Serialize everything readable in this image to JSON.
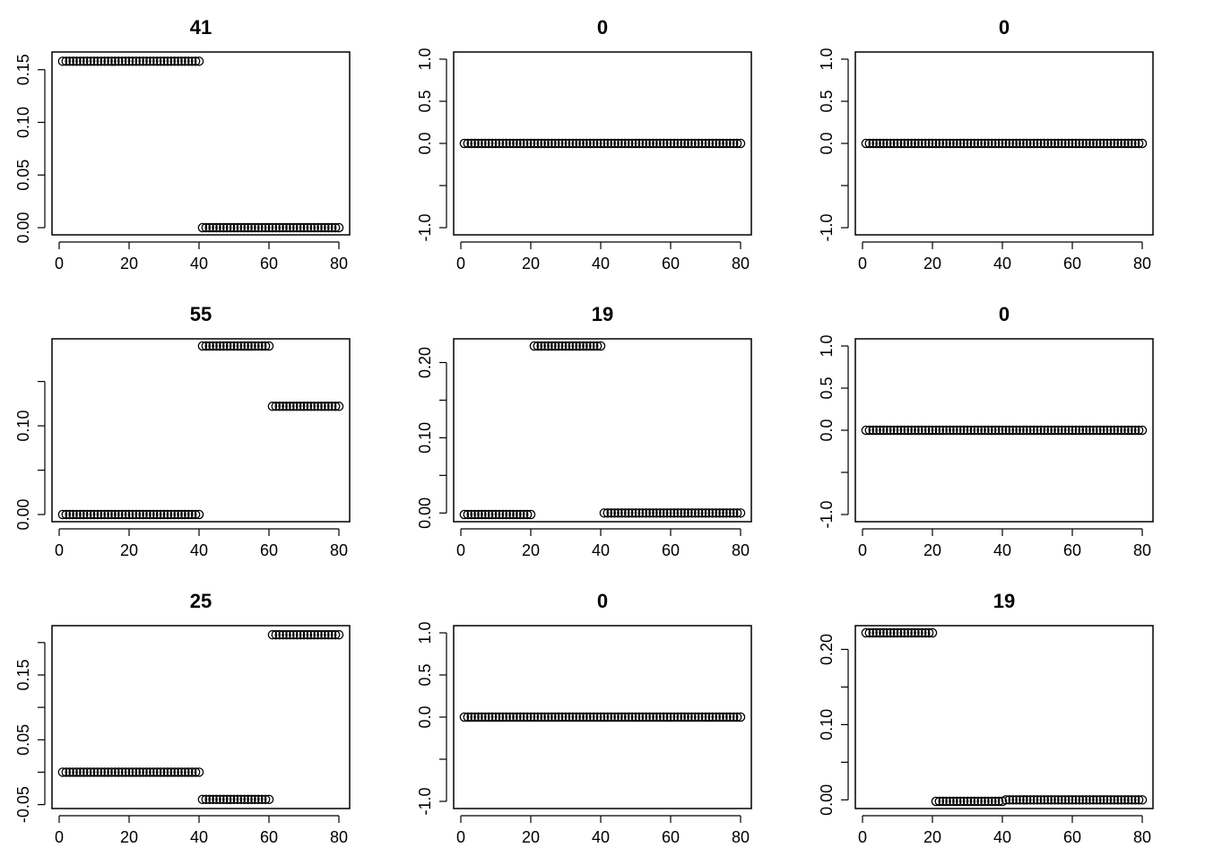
{
  "chart_data": [
    {
      "type": "scatter",
      "title": "41",
      "xlabel": "",
      "ylabel": "",
      "xlim": [
        0,
        80
      ],
      "ylim": [
        0.0,
        0.16
      ],
      "xticks": [
        0,
        20,
        40,
        60,
        80
      ],
      "xtick_labels": [
        "0",
        "20",
        "40",
        "60",
        "80"
      ],
      "yticks": [
        0.0,
        0.05,
        0.1,
        0.15
      ],
      "ytick_labels": [
        "0.00",
        "0.05",
        "0.10",
        "0.15"
      ],
      "segments": [
        {
          "x_from": 1,
          "x_to": 40,
          "y": 0.158
        },
        {
          "x_from": 41,
          "x_to": 80,
          "y": 0.0
        }
      ]
    },
    {
      "type": "scatter",
      "title": "0",
      "xlabel": "",
      "ylabel": "",
      "xlim": [
        0,
        80
      ],
      "ylim": [
        -1.0,
        1.0
      ],
      "xticks": [
        0,
        20,
        40,
        60,
        80
      ],
      "xtick_labels": [
        "0",
        "20",
        "40",
        "60",
        "80"
      ],
      "yticks": [
        -1.0,
        -0.5,
        0.0,
        0.5,
        1.0
      ],
      "ytick_labels": [
        "-1.0",
        "",
        "0.0",
        "0.5",
        "1.0"
      ],
      "segments": [
        {
          "x_from": 1,
          "x_to": 80,
          "y": 0.0
        }
      ]
    },
    {
      "type": "scatter",
      "title": "0",
      "xlabel": "",
      "ylabel": "",
      "xlim": [
        0,
        80
      ],
      "ylim": [
        -1.0,
        1.0
      ],
      "xticks": [
        0,
        20,
        40,
        60,
        80
      ],
      "xtick_labels": [
        "0",
        "20",
        "40",
        "60",
        "80"
      ],
      "yticks": [
        -1.0,
        -0.5,
        0.0,
        0.5,
        1.0
      ],
      "ytick_labels": [
        "-1.0",
        "",
        "0.0",
        "0.5",
        "1.0"
      ],
      "segments": [
        {
          "x_from": 1,
          "x_to": 80,
          "y": 0.0
        }
      ]
    },
    {
      "type": "scatter",
      "title": "55",
      "xlabel": "",
      "ylabel": "",
      "xlim": [
        0,
        80
      ],
      "ylim": [
        0.0,
        0.19
      ],
      "xticks": [
        0,
        20,
        40,
        60,
        80
      ],
      "xtick_labels": [
        "0",
        "20",
        "40",
        "60",
        "80"
      ],
      "yticks": [
        0.0,
        0.05,
        0.1,
        0.15
      ],
      "ytick_labels": [
        "0.00",
        "",
        "0.10",
        ""
      ],
      "segments": [
        {
          "x_from": 1,
          "x_to": 40,
          "y": 0.0
        },
        {
          "x_from": 41,
          "x_to": 60,
          "y": 0.19
        },
        {
          "x_from": 61,
          "x_to": 80,
          "y": 0.122
        }
      ]
    },
    {
      "type": "scatter",
      "title": "19",
      "xlabel": "",
      "ylabel": "",
      "xlim": [
        0,
        80
      ],
      "ylim": [
        -0.002,
        0.222
      ],
      "xticks": [
        0,
        20,
        40,
        60,
        80
      ],
      "xtick_labels": [
        "0",
        "20",
        "40",
        "60",
        "80"
      ],
      "yticks": [
        0.0,
        0.05,
        0.1,
        0.15,
        0.2
      ],
      "ytick_labels": [
        "0.00",
        "",
        "0.10",
        "",
        "0.20"
      ],
      "segments": [
        {
          "x_from": 1,
          "x_to": 20,
          "y": -0.002
        },
        {
          "x_from": 21,
          "x_to": 40,
          "y": 0.222
        },
        {
          "x_from": 41,
          "x_to": 80,
          "y": 0.0
        }
      ]
    },
    {
      "type": "scatter",
      "title": "0",
      "xlabel": "",
      "ylabel": "",
      "xlim": [
        0,
        80
      ],
      "ylim": [
        -1.0,
        1.0
      ],
      "xticks": [
        0,
        20,
        40,
        60,
        80
      ],
      "xtick_labels": [
        "0",
        "20",
        "40",
        "60",
        "80"
      ],
      "yticks": [
        -1.0,
        -0.5,
        0.0,
        0.5,
        1.0
      ],
      "ytick_labels": [
        "-1.0",
        "",
        "0.0",
        "0.5",
        "1.0"
      ],
      "segments": [
        {
          "x_from": 1,
          "x_to": 80,
          "y": 0.0
        }
      ]
    },
    {
      "type": "scatter",
      "title": "25",
      "xlabel": "",
      "ylabel": "",
      "xlim": [
        0,
        80
      ],
      "ylim": [
        -0.045,
        0.215
      ],
      "xticks": [
        0,
        20,
        40,
        60,
        80
      ],
      "xtick_labels": [
        "0",
        "20",
        "40",
        "60",
        "80"
      ],
      "yticks": [
        -0.05,
        0.0,
        0.05,
        0.1,
        0.15,
        0.2
      ],
      "ytick_labels": [
        "-0.05",
        "",
        "0.05",
        "",
        "0.15",
        ""
      ],
      "segments": [
        {
          "x_from": 1,
          "x_to": 40,
          "y": 0.0
        },
        {
          "x_from": 41,
          "x_to": 60,
          "y": -0.042
        },
        {
          "x_from": 61,
          "x_to": 80,
          "y": 0.212
        }
      ]
    },
    {
      "type": "scatter",
      "title": "0",
      "xlabel": "",
      "ylabel": "",
      "xlim": [
        0,
        80
      ],
      "ylim": [
        -1.0,
        1.0
      ],
      "xticks": [
        0,
        20,
        40,
        60,
        80
      ],
      "xtick_labels": [
        "0",
        "20",
        "40",
        "60",
        "80"
      ],
      "yticks": [
        -1.0,
        -0.5,
        0.0,
        0.5,
        1.0
      ],
      "ytick_labels": [
        "-1.0",
        "",
        "0.0",
        "0.5",
        "1.0"
      ],
      "segments": [
        {
          "x_from": 1,
          "x_to": 80,
          "y": 0.0
        }
      ]
    },
    {
      "type": "scatter",
      "title": "19",
      "xlabel": "",
      "ylabel": "",
      "xlim": [
        0,
        80
      ],
      "ylim": [
        -0.002,
        0.222
      ],
      "xticks": [
        0,
        20,
        40,
        60,
        80
      ],
      "xtick_labels": [
        "0",
        "20",
        "40",
        "60",
        "80"
      ],
      "yticks": [
        0.0,
        0.05,
        0.1,
        0.15,
        0.2
      ],
      "ytick_labels": [
        "0.00",
        "",
        "0.10",
        "",
        "0.20"
      ],
      "segments": [
        {
          "x_from": 1,
          "x_to": 20,
          "y": 0.222
        },
        {
          "x_from": 21,
          "x_to": 40,
          "y": -0.002
        },
        {
          "x_from": 41,
          "x_to": 80,
          "y": 0.0
        }
      ]
    }
  ]
}
